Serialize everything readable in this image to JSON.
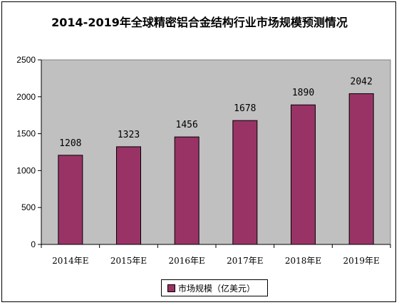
{
  "chart_data": {
    "type": "bar",
    "title": "2014-2019年全球精密铝合金结构行业市场规模预测情况",
    "categories": [
      "2014年E",
      "2015年E",
      "2016年E",
      "2017年E",
      "2018年E",
      "2019年E"
    ],
    "series": [
      {
        "name": "市场规模（亿美元）",
        "values": [
          1208,
          1323,
          1456,
          1678,
          1890,
          2042
        ]
      }
    ],
    "ylim": [
      0,
      2500
    ],
    "yticks": [
      "0",
      "500",
      "1000",
      "1500",
      "2000",
      "2500"
    ],
    "grid": false,
    "legend_position": "bottom",
    "colors": {
      "bar": "#993366",
      "plot_background": "#c0c0c0"
    }
  }
}
